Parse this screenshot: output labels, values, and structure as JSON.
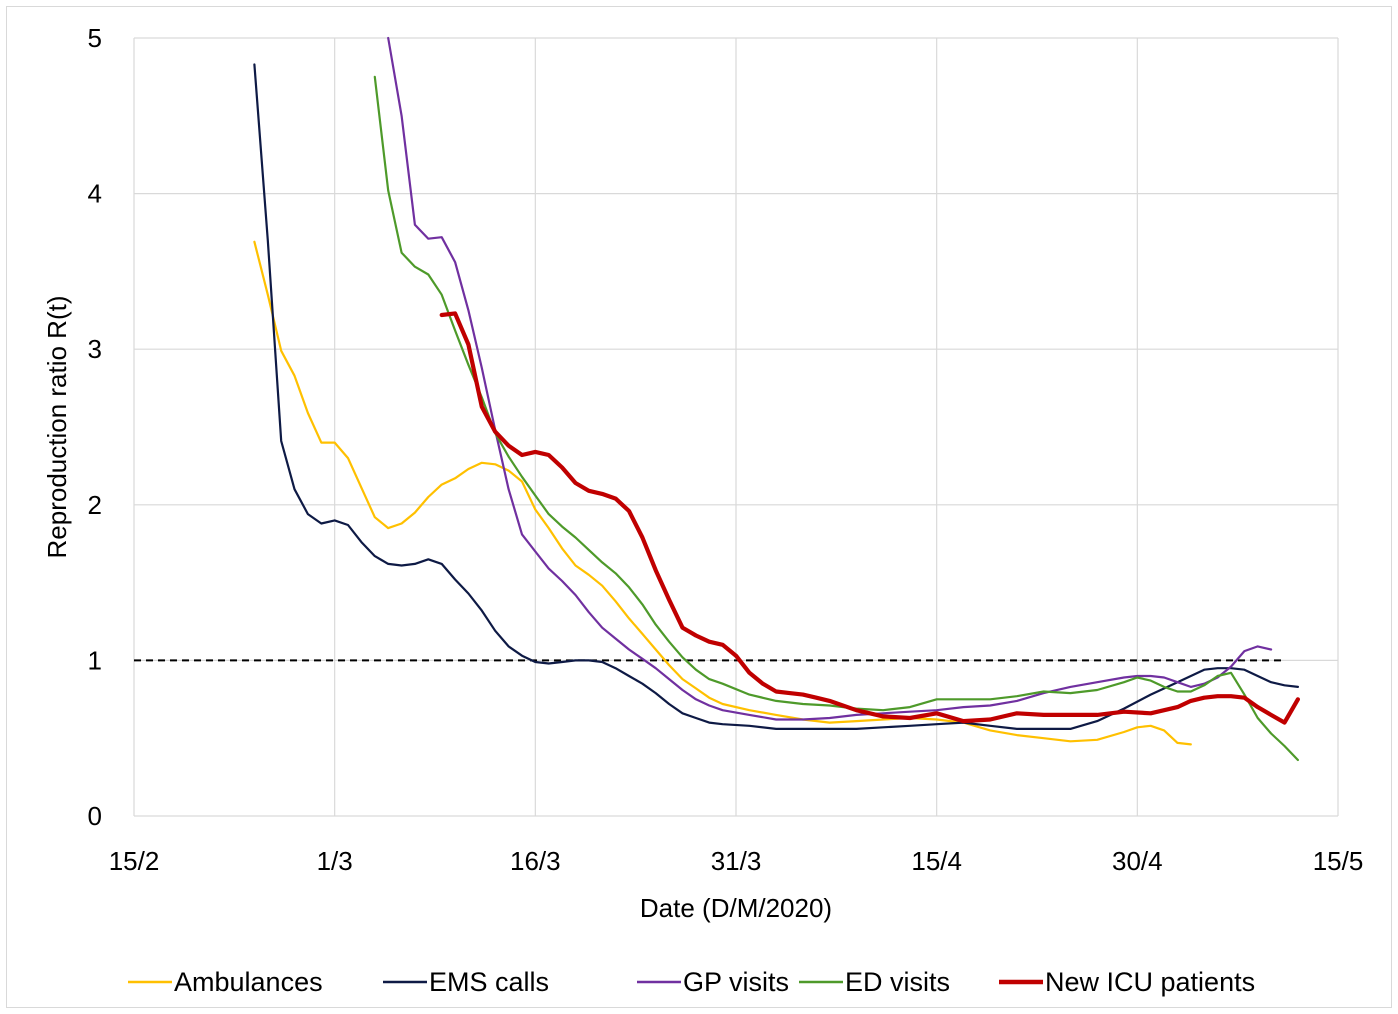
{
  "chart_data": {
    "type": "line",
    "title": "",
    "xlabel": "Date (D/M/2020)",
    "ylabel": "Reproduction  ratio R(t)",
    "x_tick_labels": [
      "15/2",
      "1/3",
      "16/3",
      "31/3",
      "15/4",
      "30/4",
      "15/5"
    ],
    "y_tick_labels": [
      "0",
      "1",
      "2",
      "3",
      "4",
      "5"
    ],
    "ylim": [
      0,
      5
    ],
    "grid": true,
    "legend_position": "bottom",
    "reference_line": {
      "y": 1,
      "style": "dashed",
      "color": "#000000"
    },
    "series": [
      {
        "name": "Ambulances",
        "color": "#FFC000",
        "x": [
          "2020-02-24",
          "2020-02-25",
          "2020-02-26",
          "2020-02-27",
          "2020-02-28",
          "2020-02-29",
          "2020-03-01",
          "2020-03-02",
          "2020-03-03",
          "2020-03-04",
          "2020-03-05",
          "2020-03-06",
          "2020-03-07",
          "2020-03-08",
          "2020-03-09",
          "2020-03-10",
          "2020-03-11",
          "2020-03-12",
          "2020-03-13",
          "2020-03-14",
          "2020-03-15",
          "2020-03-16",
          "2020-03-17",
          "2020-03-18",
          "2020-03-19",
          "2020-03-20",
          "2020-03-21",
          "2020-03-22",
          "2020-03-23",
          "2020-03-24",
          "2020-03-25",
          "2020-03-26",
          "2020-03-27",
          "2020-03-28",
          "2020-03-29",
          "2020-03-30",
          "2020-04-01",
          "2020-04-03",
          "2020-04-05",
          "2020-04-07",
          "2020-04-09",
          "2020-04-11",
          "2020-04-13",
          "2020-04-15",
          "2020-04-17",
          "2020-04-19",
          "2020-04-21",
          "2020-04-23",
          "2020-04-25",
          "2020-04-27",
          "2020-04-29",
          "2020-04-30",
          "2020-05-01",
          "2020-05-02",
          "2020-05-03",
          "2020-05-04"
        ],
        "y": [
          3.69,
          3.35,
          2.99,
          2.83,
          2.59,
          2.4,
          2.4,
          2.3,
          2.11,
          1.92,
          1.85,
          1.88,
          1.95,
          2.05,
          2.13,
          2.17,
          2.23,
          2.27,
          2.26,
          2.22,
          2.15,
          1.97,
          1.85,
          1.72,
          1.61,
          1.55,
          1.48,
          1.38,
          1.27,
          1.17,
          1.07,
          0.97,
          0.88,
          0.82,
          0.76,
          0.72,
          0.68,
          0.65,
          0.62,
          0.6,
          0.61,
          0.62,
          0.63,
          0.62,
          0.6,
          0.55,
          0.52,
          0.5,
          0.48,
          0.49,
          0.54,
          0.57,
          0.58,
          0.55,
          0.47,
          0.46
        ]
      },
      {
        "name": "EMS calls",
        "color": "#0E1A45",
        "x": [
          "2020-02-24",
          "2020-02-25",
          "2020-02-26",
          "2020-02-27",
          "2020-02-28",
          "2020-02-29",
          "2020-03-01",
          "2020-03-02",
          "2020-03-03",
          "2020-03-04",
          "2020-03-05",
          "2020-03-06",
          "2020-03-07",
          "2020-03-08",
          "2020-03-09",
          "2020-03-10",
          "2020-03-11",
          "2020-03-12",
          "2020-03-13",
          "2020-03-14",
          "2020-03-15",
          "2020-03-16",
          "2020-03-17",
          "2020-03-18",
          "2020-03-19",
          "2020-03-20",
          "2020-03-21",
          "2020-03-22",
          "2020-03-23",
          "2020-03-24",
          "2020-03-25",
          "2020-03-26",
          "2020-03-27",
          "2020-03-28",
          "2020-03-29",
          "2020-03-30",
          "2020-04-01",
          "2020-04-03",
          "2020-04-05",
          "2020-04-07",
          "2020-04-09",
          "2020-04-11",
          "2020-04-13",
          "2020-04-15",
          "2020-04-17",
          "2020-04-19",
          "2020-04-21",
          "2020-04-23",
          "2020-04-25",
          "2020-04-27",
          "2020-04-29",
          "2020-05-01",
          "2020-05-03",
          "2020-05-05",
          "2020-05-06",
          "2020-05-07",
          "2020-05-08",
          "2020-05-09",
          "2020-05-10",
          "2020-05-11",
          "2020-05-12"
        ],
        "y": [
          4.83,
          3.7,
          2.41,
          2.1,
          1.94,
          1.88,
          1.9,
          1.87,
          1.76,
          1.67,
          1.62,
          1.61,
          1.62,
          1.65,
          1.62,
          1.52,
          1.43,
          1.32,
          1.19,
          1.09,
          1.03,
          0.99,
          0.98,
          0.99,
          1.0,
          1.0,
          0.99,
          0.95,
          0.9,
          0.85,
          0.79,
          0.72,
          0.66,
          0.63,
          0.6,
          0.59,
          0.58,
          0.56,
          0.56,
          0.56,
          0.56,
          0.57,
          0.58,
          0.59,
          0.6,
          0.58,
          0.56,
          0.56,
          0.56,
          0.61,
          0.69,
          0.78,
          0.86,
          0.94,
          0.95,
          0.95,
          0.94,
          0.9,
          0.86,
          0.84,
          0.83
        ]
      },
      {
        "name": "GP visits",
        "color": "#7030A0",
        "x": [
          "2020-03-05",
          "2020-03-06",
          "2020-03-07",
          "2020-03-08",
          "2020-03-09",
          "2020-03-10",
          "2020-03-11",
          "2020-03-12",
          "2020-03-13",
          "2020-03-14",
          "2020-03-15",
          "2020-03-16",
          "2020-03-17",
          "2020-03-18",
          "2020-03-19",
          "2020-03-20",
          "2020-03-21",
          "2020-03-22",
          "2020-03-23",
          "2020-03-24",
          "2020-03-25",
          "2020-03-26",
          "2020-03-27",
          "2020-03-28",
          "2020-03-29",
          "2020-03-30",
          "2020-04-01",
          "2020-04-03",
          "2020-04-05",
          "2020-04-07",
          "2020-04-09",
          "2020-04-11",
          "2020-04-13",
          "2020-04-15",
          "2020-04-17",
          "2020-04-19",
          "2020-04-21",
          "2020-04-23",
          "2020-04-25",
          "2020-04-27",
          "2020-04-29",
          "2020-04-30",
          "2020-05-01",
          "2020-05-02",
          "2020-05-03",
          "2020-05-04",
          "2020-05-05",
          "2020-05-06",
          "2020-05-07",
          "2020-05-08",
          "2020-05-09",
          "2020-05-10"
        ],
        "y": [
          5.0,
          4.5,
          3.8,
          3.71,
          3.72,
          3.56,
          3.25,
          2.88,
          2.48,
          2.1,
          1.81,
          1.7,
          1.59,
          1.51,
          1.42,
          1.31,
          1.21,
          1.14,
          1.07,
          1.01,
          0.95,
          0.88,
          0.81,
          0.75,
          0.71,
          0.68,
          0.65,
          0.62,
          0.62,
          0.63,
          0.65,
          0.66,
          0.67,
          0.68,
          0.7,
          0.71,
          0.74,
          0.79,
          0.83,
          0.86,
          0.89,
          0.9,
          0.9,
          0.89,
          0.86,
          0.83,
          0.85,
          0.89,
          0.96,
          1.06,
          1.09,
          1.07
        ]
      },
      {
        "name": "ED visits",
        "color": "#4E9A2A",
        "x": [
          "2020-03-04",
          "2020-03-05",
          "2020-03-06",
          "2020-03-07",
          "2020-03-08",
          "2020-03-09",
          "2020-03-10",
          "2020-03-11",
          "2020-03-12",
          "2020-03-13",
          "2020-03-14",
          "2020-03-15",
          "2020-03-16",
          "2020-03-17",
          "2020-03-18",
          "2020-03-19",
          "2020-03-20",
          "2020-03-21",
          "2020-03-22",
          "2020-03-23",
          "2020-03-24",
          "2020-03-25",
          "2020-03-26",
          "2020-03-27",
          "2020-03-28",
          "2020-03-29",
          "2020-03-30",
          "2020-04-01",
          "2020-04-03",
          "2020-04-05",
          "2020-04-07",
          "2020-04-09",
          "2020-04-11",
          "2020-04-13",
          "2020-04-15",
          "2020-04-17",
          "2020-04-19",
          "2020-04-21",
          "2020-04-23",
          "2020-04-25",
          "2020-04-27",
          "2020-04-29",
          "2020-04-30",
          "2020-05-01",
          "2020-05-02",
          "2020-05-03",
          "2020-05-04",
          "2020-05-05",
          "2020-05-06",
          "2020-05-07",
          "2020-05-08",
          "2020-05-09",
          "2020-05-10",
          "2020-05-11",
          "2020-05-12"
        ],
        "y": [
          4.75,
          4.02,
          3.62,
          3.53,
          3.48,
          3.35,
          3.12,
          2.9,
          2.69,
          2.46,
          2.31,
          2.18,
          2.06,
          1.94,
          1.86,
          1.79,
          1.71,
          1.63,
          1.56,
          1.47,
          1.36,
          1.23,
          1.12,
          1.02,
          0.94,
          0.88,
          0.85,
          0.78,
          0.74,
          0.72,
          0.71,
          0.69,
          0.68,
          0.7,
          0.75,
          0.75,
          0.75,
          0.77,
          0.8,
          0.79,
          0.81,
          0.86,
          0.89,
          0.87,
          0.83,
          0.8,
          0.8,
          0.84,
          0.9,
          0.92,
          0.78,
          0.63,
          0.53,
          0.45,
          0.36
        ]
      },
      {
        "name": "New ICU patients",
        "color": "#C00000",
        "x": [
          "2020-03-09",
          "2020-03-10",
          "2020-03-11",
          "2020-03-12",
          "2020-03-13",
          "2020-03-14",
          "2020-03-15",
          "2020-03-16",
          "2020-03-17",
          "2020-03-18",
          "2020-03-19",
          "2020-03-20",
          "2020-03-21",
          "2020-03-22",
          "2020-03-23",
          "2020-03-24",
          "2020-03-25",
          "2020-03-26",
          "2020-03-27",
          "2020-03-28",
          "2020-03-29",
          "2020-03-30",
          "2020-03-31",
          "2020-04-01",
          "2020-04-02",
          "2020-04-03",
          "2020-04-04",
          "2020-04-05",
          "2020-04-06",
          "2020-04-07",
          "2020-04-09",
          "2020-04-11",
          "2020-04-13",
          "2020-04-15",
          "2020-04-17",
          "2020-04-19",
          "2020-04-21",
          "2020-04-23",
          "2020-04-25",
          "2020-04-27",
          "2020-04-29",
          "2020-05-01",
          "2020-05-03",
          "2020-05-04",
          "2020-05-05",
          "2020-05-06",
          "2020-05-07",
          "2020-05-08",
          "2020-05-09",
          "2020-05-10",
          "2020-05-11",
          "2020-05-12"
        ],
        "y": [
          3.22,
          3.23,
          3.03,
          2.63,
          2.47,
          2.38,
          2.32,
          2.34,
          2.32,
          2.24,
          2.14,
          2.09,
          2.07,
          2.04,
          1.96,
          1.79,
          1.58,
          1.39,
          1.21,
          1.16,
          1.12,
          1.1,
          1.03,
          0.92,
          0.85,
          0.8,
          0.79,
          0.78,
          0.76,
          0.74,
          0.68,
          0.64,
          0.63,
          0.66,
          0.61,
          0.62,
          0.66,
          0.65,
          0.65,
          0.65,
          0.67,
          0.66,
          0.7,
          0.74,
          0.76,
          0.77,
          0.77,
          0.76,
          0.7,
          0.65,
          0.6,
          0.75
        ]
      }
    ]
  }
}
